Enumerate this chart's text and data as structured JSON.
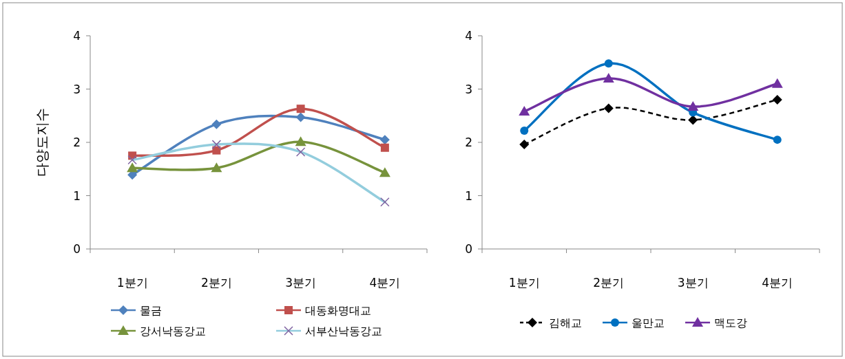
{
  "chart_data": [
    {
      "type": "line",
      "ylabel": "다양도지수",
      "categories": [
        "1분기",
        "2분기",
        "3분기",
        "4분기"
      ],
      "ylim": [
        0,
        4
      ],
      "yticks": [
        0,
        1,
        2,
        3,
        4
      ],
      "grid": false,
      "legend": "bottom",
      "series": [
        {
          "name": "물금",
          "color": "#4f81bd",
          "marker": "diamond",
          "line_style": "solid",
          "values": [
            1.39,
            2.34,
            2.47,
            2.05
          ]
        },
        {
          "name": "대동화명대교",
          "color": "#c0504d",
          "marker": "square",
          "line_style": "solid",
          "values": [
            1.75,
            1.85,
            2.63,
            1.9
          ]
        },
        {
          "name": "강서낙동강교",
          "color": "#77933c",
          "marker": "triangle",
          "line_style": "solid",
          "values": [
            1.52,
            1.52,
            2.01,
            1.43
          ]
        },
        {
          "name": "서부산낙동강교",
          "color": "#93cddd",
          "marker": "cross",
          "line_style": "solid",
          "values": [
            1.67,
            1.96,
            1.82,
            0.88
          ]
        }
      ]
    },
    {
      "type": "line",
      "categories": [
        "1분기",
        "2분기",
        "3분기",
        "4분기"
      ],
      "ylim": [
        0,
        4
      ],
      "yticks": [
        0,
        1,
        2,
        3,
        4
      ],
      "grid": false,
      "legend": "bottom",
      "series": [
        {
          "name": "김해교",
          "color": "#000000",
          "marker": "diamond",
          "line_style": "dashed",
          "values": [
            1.96,
            2.64,
            2.42,
            2.8
          ]
        },
        {
          "name": "울만교",
          "color": "#0070c0",
          "marker": "circle",
          "line_style": "solid",
          "values": [
            2.22,
            3.48,
            2.56,
            2.05
          ]
        },
        {
          "name": "맥도강",
          "color": "#7030a0",
          "marker": "triangle",
          "line_style": "solid",
          "values": [
            2.58,
            3.2,
            2.67,
            3.1
          ]
        }
      ]
    }
  ]
}
